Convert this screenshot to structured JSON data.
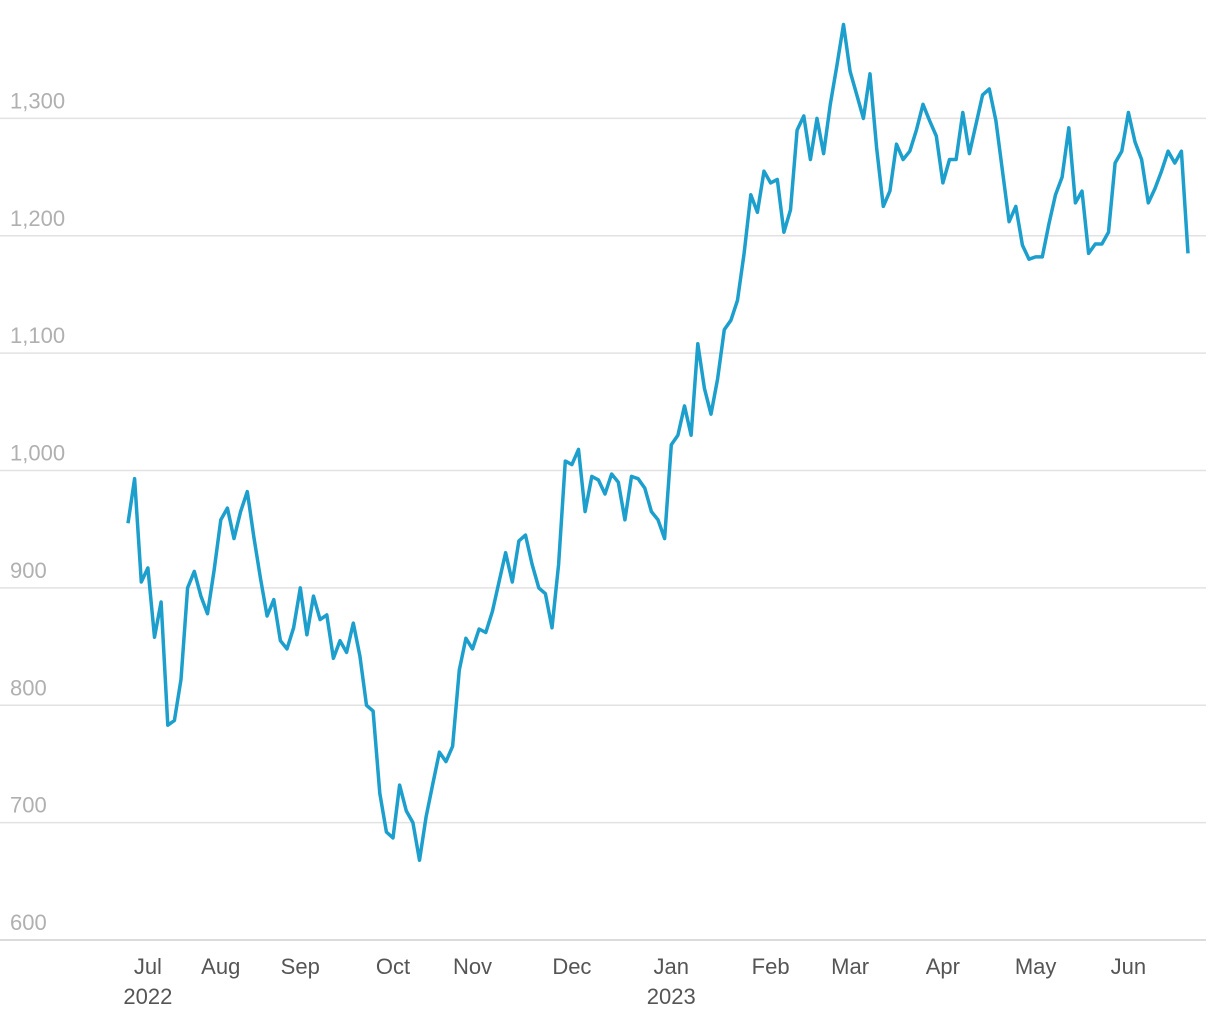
{
  "chart_data": {
    "type": "line",
    "x": [
      null,
      null,
      null,
      "Jul",
      null,
      null,
      null,
      null,
      null,
      null,
      null,
      null,
      null,
      null,
      "Aug",
      null,
      null,
      null,
      null,
      null,
      null,
      null,
      null,
      null,
      null,
      null,
      "Sep",
      null,
      null,
      null,
      null,
      null,
      null,
      null,
      null,
      null,
      null,
      null,
      null,
      null,
      "Oct",
      null,
      null,
      null,
      null,
      null,
      null,
      null,
      null,
      null,
      null,
      null,
      "Nov",
      null,
      null,
      null,
      null,
      null,
      null,
      null,
      null,
      null,
      null,
      null,
      null,
      null,
      null,
      "Dec",
      null,
      null,
      null,
      null,
      null,
      null,
      null,
      null,
      null,
      null,
      null,
      null,
      null,
      null,
      "Jan",
      null,
      null,
      null,
      null,
      null,
      null,
      null,
      null,
      null,
      null,
      null,
      null,
      null,
      null,
      "Feb",
      null,
      null,
      null,
      null,
      null,
      null,
      null,
      null,
      null,
      null,
      null,
      "Mar",
      null,
      null,
      null,
      null,
      null,
      null,
      null,
      null,
      null,
      null,
      null,
      null,
      null,
      "Apr",
      null,
      null,
      null,
      null,
      null,
      null,
      null,
      null,
      null,
      null,
      null,
      null,
      null,
      "May",
      null,
      null,
      null,
      null,
      null,
      null,
      null,
      null,
      null,
      null,
      null,
      null,
      null,
      "Jun",
      null,
      null,
      null,
      null,
      null,
      null,
      null,
      null,
      null
    ],
    "x_years": [
      null,
      null,
      null,
      "2022",
      null,
      null,
      null,
      null,
      null,
      null,
      null,
      null,
      null,
      null,
      null,
      null,
      null,
      null,
      null,
      null,
      null,
      null,
      null,
      null,
      null,
      null,
      null,
      null,
      null,
      null,
      null,
      null,
      null,
      null,
      null,
      null,
      null,
      null,
      null,
      null,
      null,
      null,
      null,
      null,
      null,
      null,
      null,
      null,
      null,
      null,
      null,
      null,
      null,
      null,
      null,
      null,
      null,
      null,
      null,
      null,
      null,
      null,
      null,
      null,
      null,
      null,
      null,
      null,
      null,
      null,
      null,
      null,
      null,
      null,
      null,
      null,
      null,
      null,
      null,
      null,
      null,
      null,
      "2023",
      null,
      null,
      null,
      null,
      null,
      null,
      null,
      null,
      null,
      null,
      null,
      null,
      null,
      null,
      null,
      null,
      null,
      null,
      null,
      null,
      null,
      null,
      null,
      null,
      null,
      null,
      null,
      null,
      null,
      null,
      null,
      null,
      null,
      null,
      null,
      null,
      null,
      null,
      null,
      null,
      null,
      null,
      null,
      null,
      null,
      null,
      null,
      null,
      null,
      null,
      null,
      null,
      null,
      null,
      null,
      null,
      null,
      null,
      null,
      null,
      null,
      null,
      null,
      null,
      null,
      null,
      null,
      null,
      null,
      null,
      null,
      null,
      null,
      null,
      null,
      null,
      null,
      null,
      null,
      null,
      null,
      null
    ],
    "series": [
      {
        "color": "#1c9fcc",
        "values": [
          955,
          993,
          905,
          917,
          858,
          888,
          783,
          787,
          822,
          900,
          914,
          893,
          878,
          915,
          958,
          968,
          942,
          965,
          982,
          943,
          908,
          876,
          890,
          855,
          848,
          866,
          900,
          860,
          893,
          873,
          877,
          840,
          855,
          845,
          870,
          842,
          800,
          795,
          725,
          692,
          687,
          732,
          710,
          700,
          668,
          705,
          733,
          760,
          752,
          765,
          830,
          857,
          848,
          865,
          862,
          880,
          905,
          930,
          905,
          940,
          945,
          920,
          900,
          895,
          866,
          920,
          1008,
          1005,
          1018,
          965,
          995,
          992,
          980,
          997,
          990,
          958,
          995,
          993,
          985,
          965,
          958,
          942,
          1022,
          1030,
          1055,
          1030,
          1108,
          1070,
          1048,
          1078,
          1120,
          1128,
          1145,
          1185,
          1235,
          1220,
          1255,
          1245,
          1248,
          1203,
          1222,
          1290,
          1302,
          1265,
          1300,
          1270,
          1312,
          1345,
          1380,
          1340,
          1320,
          1300,
          1338,
          1275,
          1225,
          1238,
          1278,
          1265,
          1272,
          1290,
          1312,
          1298,
          1285,
          1245,
          1265,
          1265,
          1305,
          1270,
          1295,
          1320,
          1325,
          1298,
          1255,
          1212,
          1225,
          1192,
          1180,
          1182,
          1182,
          1210,
          1235,
          1250,
          1292,
          1228,
          1238,
          1185,
          1193,
          1193,
          1203,
          1262,
          1272,
          1305,
          1280,
          1265,
          1228,
          1240,
          1255,
          1272,
          1262,
          1272,
          1185
        ]
      }
    ],
    "ylim": [
      600,
      1400
    ],
    "yticks": [
      600,
      700,
      800,
      900,
      {
        "value": 1000,
        "label": "1,000"
      },
      {
        "value": 1100,
        "label": "1,100"
      },
      {
        "value": 1200,
        "label": "1,200"
      },
      {
        "value": 1300,
        "label": "1,300"
      }
    ],
    "grid": true
  }
}
